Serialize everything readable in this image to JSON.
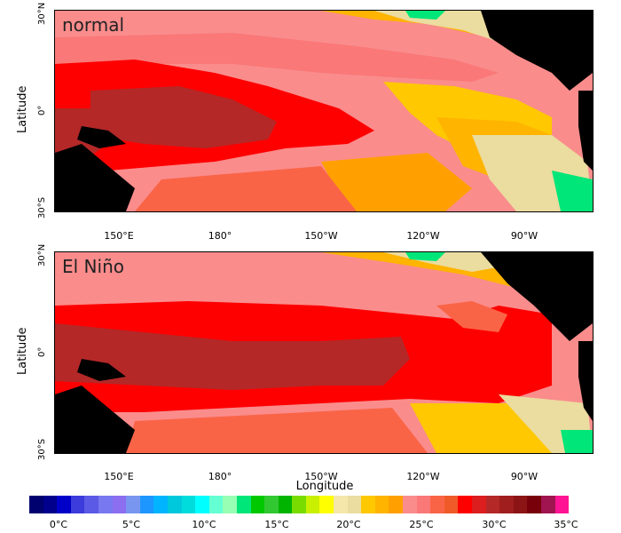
{
  "panels": [
    {
      "label": "normal"
    },
    {
      "label": "El Niño"
    }
  ],
  "axes": {
    "ylabel": "Latitude",
    "xlabel": "Longitude",
    "lat_ticks": [
      "30°N",
      "0°",
      "30°S"
    ],
    "lon_ticks": [
      "150°E",
      "180°",
      "150°W",
      "120°W",
      "90°W"
    ]
  },
  "colorbar": {
    "colors": [
      "#00006e",
      "#00008c",
      "#0000c8",
      "#3c3cdc",
      "#5a5ae6",
      "#7878f0",
      "#8c6ef0",
      "#7896f0",
      "#1e96ff",
      "#00b4ff",
      "#00c8dc",
      "#00dcdc",
      "#00ffff",
      "#64ffd2",
      "#96ffb4",
      "#00e678",
      "#00c800",
      "#32c832",
      "#00b400",
      "#78dc00",
      "#c8f000",
      "#ffff00",
      "#f5e6aa",
      "#ebdca0",
      "#ffc800",
      "#ffb400",
      "#ffa000",
      "#fa8c8c",
      "#fa7878",
      "#fa6446",
      "#f05a28",
      "#ff0000",
      "#dc1e1e",
      "#b42828",
      "#a01e1e",
      "#8c1414",
      "#78000a",
      "#a01450",
      "#ff1493"
    ],
    "tick_labels": [
      "0°C",
      "5°C",
      "10°C",
      "15°C",
      "20°C",
      "25°C",
      "30°C",
      "35°C"
    ]
  }
}
